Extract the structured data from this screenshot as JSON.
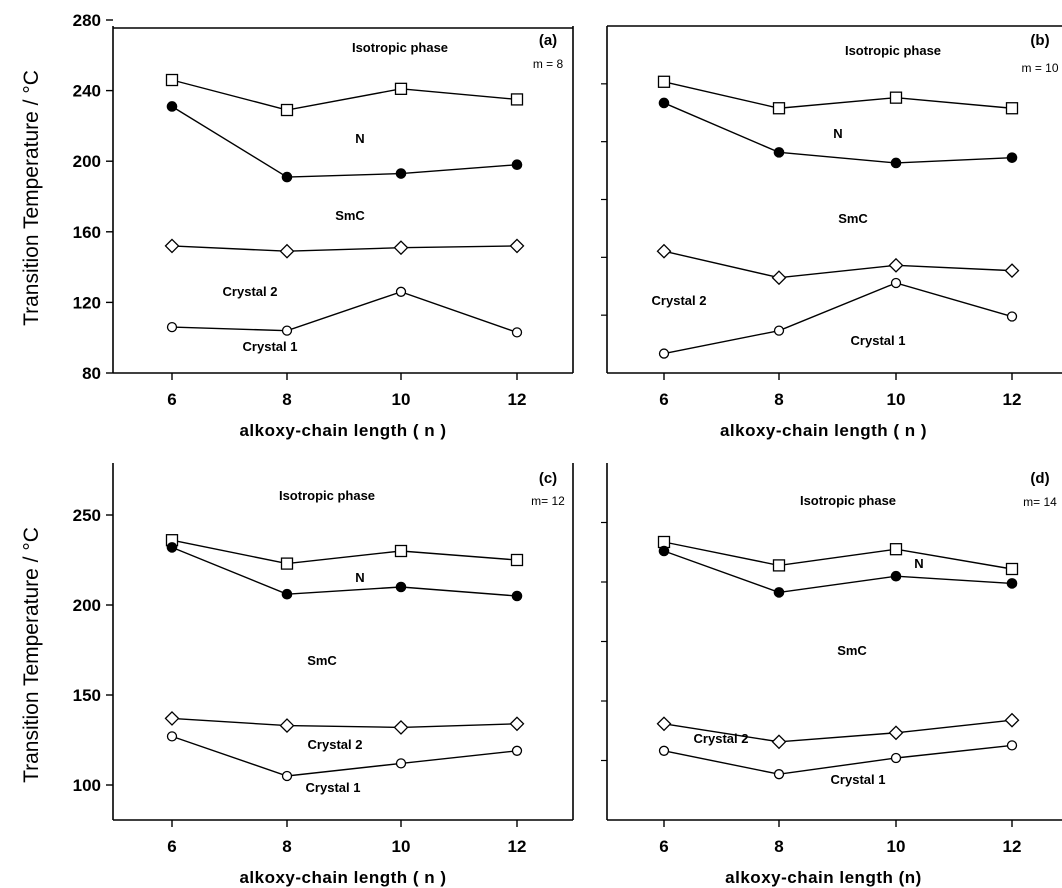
{
  "figure": {
    "ylabel": "Transition Temperature / °C"
  },
  "chart_data": [
    {
      "type": "line",
      "panel_id": "(a)",
      "m_label": "m = 8",
      "xlabel": "alkoxy-chain length ( n )",
      "ylabel": "Transition Temperature / °C",
      "x": [
        6,
        8,
        10,
        12
      ],
      "xticks": [
        "6",
        "8",
        "10",
        "12"
      ],
      "ylim": [
        80,
        280
      ],
      "yticks": [
        "80",
        "120",
        "160",
        "200",
        "240",
        "280"
      ],
      "series": [
        {
          "values": [
            246,
            229,
            241,
            235
          ],
          "marker": "open-square"
        },
        {
          "values": [
            231,
            191,
            193,
            198
          ],
          "marker": "filled-circle"
        },
        {
          "values": [
            152,
            149,
            151,
            152
          ],
          "marker": "open-diamond"
        },
        {
          "values": [
            106,
            104,
            126,
            103
          ],
          "marker": "open-circle"
        }
      ],
      "region_labels": {
        "isotropic": "Isotropic phase",
        "nematic": "N",
        "smectic": "SmC",
        "crystal2": "Crystal 2",
        "crystal1": "Crystal 1"
      }
    },
    {
      "type": "line",
      "panel_id": "(b)",
      "m_label": "m = 10",
      "xlabel": "alkoxy-chain length ( n )",
      "ylabel": "",
      "x": [
        6,
        8,
        10,
        12
      ],
      "xticks": [
        "6",
        "8",
        "10",
        "12"
      ],
      "ylim": [
        80,
        280
      ],
      "yticks": [],
      "series": [
        {
          "values": [
            245,
            230,
            236,
            230
          ],
          "marker": "open-square"
        },
        {
          "values": [
            233,
            205,
            199,
            202
          ],
          "marker": "filled-circle"
        },
        {
          "values": [
            149,
            134,
            141,
            138
          ],
          "marker": "open-diamond"
        },
        {
          "values": [
            91,
            104,
            131,
            112
          ],
          "marker": "open-circle"
        }
      ],
      "region_labels": {
        "isotropic": "Isotropic phase",
        "nematic": "N",
        "smectic": "SmC",
        "crystal2": "Crystal 2",
        "crystal1": "Crystal 1"
      }
    },
    {
      "type": "line",
      "panel_id": "(c)",
      "m_label": "m= 12",
      "xlabel": "alkoxy-chain length ( n )",
      "ylabel": "Transition Temperature / °C",
      "x": [
        6,
        8,
        10,
        12
      ],
      "xticks": [
        "6",
        "8",
        "10",
        "12"
      ],
      "ylim": [
        80,
        280
      ],
      "yticks": [
        "100",
        "150",
        "200",
        "250"
      ],
      "series": [
        {
          "values": [
            236,
            223,
            230,
            225
          ],
          "marker": "open-square"
        },
        {
          "values": [
            232,
            206,
            210,
            205
          ],
          "marker": "filled-circle"
        },
        {
          "values": [
            137,
            133,
            132,
            134
          ],
          "marker": "open-diamond"
        },
        {
          "values": [
            127,
            105,
            112,
            119
          ],
          "marker": "open-circle"
        }
      ],
      "region_labels": {
        "isotropic": "Isotropic phase",
        "nematic": "N",
        "smectic": "SmC",
        "crystal2": "Crystal 2",
        "crystal1": "Crystal 1"
      }
    },
    {
      "type": "line",
      "panel_id": "(d)",
      "m_label": "m= 14",
      "xlabel": "alkoxy-chain length (n)",
      "ylabel": "",
      "x": [
        6,
        8,
        10,
        12
      ],
      "xticks": [
        "6",
        "8",
        "10",
        "12"
      ],
      "ylim": [
        80,
        280
      ],
      "yticks": [],
      "series": [
        {
          "values": [
            235,
            222,
            231,
            220
          ],
          "marker": "open-square"
        },
        {
          "values": [
            230,
            207,
            216,
            212
          ],
          "marker": "filled-circle"
        },
        {
          "values": [
            134,
            124,
            129,
            136
          ],
          "marker": "open-diamond"
        },
        {
          "values": [
            119,
            106,
            115,
            122
          ],
          "marker": "open-circle"
        }
      ],
      "region_labels": {
        "isotropic": "Isotropic phase",
        "nematic": "N",
        "smectic": "SmC",
        "crystal2": "Crystal 2",
        "crystal1": "Crystal 1"
      }
    }
  ]
}
